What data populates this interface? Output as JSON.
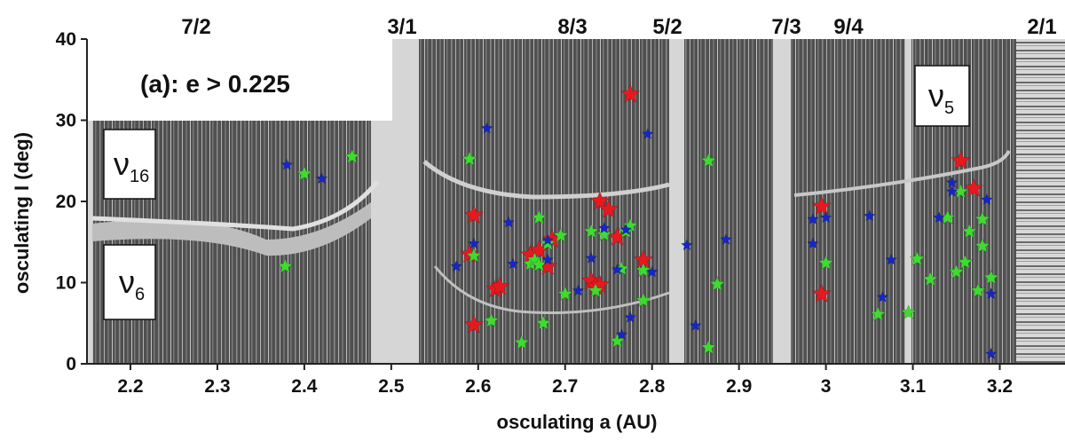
{
  "chart_data": {
    "type": "scatter",
    "panel_label": "(a): e > 0.225",
    "xlabel": "osculating a (AU)",
    "ylabel": "osculating I (deg)",
    "xlim": [
      2.15,
      3.275
    ],
    "ylim": [
      0,
      40
    ],
    "x_ticks": [
      2.2,
      2.3,
      2.4,
      2.5,
      2.6,
      2.7,
      2.8,
      2.9,
      3.0,
      3.1,
      3.2
    ],
    "x_tick_labels": [
      "2.2",
      "2.3",
      "2.4",
      "2.5",
      "2.6",
      "2.7",
      "2.8",
      "2.9",
      "3",
      "3.1",
      "3.2"
    ],
    "y_ticks": [
      0,
      10,
      20,
      30,
      40
    ],
    "y_tick_labels": [
      "0",
      "10",
      "20",
      "30",
      "40"
    ],
    "resonances": [
      {
        "label": "7/2",
        "a": 2.256
      },
      {
        "label": "3/1",
        "a": 2.5
      },
      {
        "label": "8/3",
        "a": 2.705
      },
      {
        "label": "5/2",
        "a": 2.825
      },
      {
        "label": "7/3",
        "a": 2.957
      },
      {
        "label": "9/4",
        "a": 3.03
      },
      {
        "label": "2/1",
        "a": 3.276
      }
    ],
    "secular_boxes": [
      {
        "name": "nu16",
        "symbol": "ν",
        "subscript": "16",
        "a_range": [
          2.163,
          2.227
        ],
        "i_range": [
          20.2,
          26.6
        ]
      },
      {
        "name": "nu6",
        "symbol": "ν",
        "subscript": "6",
        "a_range": [
          2.163,
          2.227
        ],
        "i_range": [
          5.4,
          14.2
        ]
      },
      {
        "name": "nu5",
        "symbol": "ν",
        "subscript": "5",
        "a_range": [
          3.108,
          3.172
        ],
        "i_range": [
          29.4,
          36.6
        ]
      }
    ],
    "series": [
      {
        "color": "#e6191f",
        "size": "large",
        "points": [
          [
            2.59,
            13.5
          ],
          [
            2.595,
            18.3
          ],
          [
            2.595,
            4.8
          ],
          [
            2.62,
            9.2
          ],
          [
            2.625,
            9.5
          ],
          [
            2.66,
            13.4
          ],
          [
            2.67,
            14.0
          ],
          [
            2.68,
            12.0
          ],
          [
            2.685,
            15.3
          ],
          [
            2.73,
            10.2
          ],
          [
            2.735,
            9.5
          ],
          [
            2.74,
            9.7
          ],
          [
            2.74,
            20.0
          ],
          [
            2.75,
            19.0
          ],
          [
            2.76,
            15.6
          ],
          [
            2.775,
            33.2
          ],
          [
            2.79,
            12.8
          ],
          [
            2.995,
            19.4
          ],
          [
            2.995,
            8.6
          ],
          [
            3.155,
            25.0
          ],
          [
            3.17,
            21.6
          ]
        ]
      },
      {
        "color": "#3ddc2f",
        "size": "medium",
        "points": [
          [
            2.378,
            12.0
          ],
          [
            2.4,
            23.4
          ],
          [
            2.455,
            25.5
          ],
          [
            2.59,
            25.2
          ],
          [
            2.595,
            13.3
          ],
          [
            2.615,
            5.3
          ],
          [
            2.65,
            2.6
          ],
          [
            2.66,
            12.3
          ],
          [
            2.665,
            12.8
          ],
          [
            2.67,
            12.2
          ],
          [
            2.67,
            18.0
          ],
          [
            2.675,
            5.0
          ],
          [
            2.68,
            14.8
          ],
          [
            2.695,
            15.8
          ],
          [
            2.7,
            8.6
          ],
          [
            2.73,
            16.3
          ],
          [
            2.735,
            9.0
          ],
          [
            2.745,
            15.9
          ],
          [
            2.76,
            2.8
          ],
          [
            2.765,
            11.7
          ],
          [
            2.77,
            16.3
          ],
          [
            2.775,
            17.0
          ],
          [
            2.79,
            7.8
          ],
          [
            2.79,
            11.5
          ],
          [
            2.865,
            25.0
          ],
          [
            2.865,
            2.0
          ],
          [
            2.875,
            9.8
          ],
          [
            3.0,
            12.4
          ],
          [
            3.06,
            6.1
          ],
          [
            3.095,
            6.3
          ],
          [
            3.105,
            12.9
          ],
          [
            3.12,
            10.4
          ],
          [
            3.14,
            18.0
          ],
          [
            3.15,
            11.3
          ],
          [
            3.155,
            21.2
          ],
          [
            3.16,
            12.5
          ],
          [
            3.165,
            16.3
          ],
          [
            3.18,
            17.8
          ],
          [
            3.18,
            14.5
          ],
          [
            3.175,
            9.0
          ],
          [
            3.19,
            10.6
          ]
        ]
      },
      {
        "color": "#1526c9",
        "size": "small",
        "points": [
          [
            2.38,
            24.5
          ],
          [
            2.42,
            22.8
          ],
          [
            2.575,
            12.0
          ],
          [
            2.595,
            14.8
          ],
          [
            2.61,
            29.0
          ],
          [
            2.635,
            17.4
          ],
          [
            2.64,
            12.3
          ],
          [
            2.68,
            15.2
          ],
          [
            2.68,
            12.8
          ],
          [
            2.715,
            9.0
          ],
          [
            2.73,
            13.0
          ],
          [
            2.745,
            16.7
          ],
          [
            2.765,
            3.6
          ],
          [
            2.76,
            11.6
          ],
          [
            2.77,
            16.5
          ],
          [
            2.775,
            5.7
          ],
          [
            2.795,
            28.3
          ],
          [
            2.8,
            11.3
          ],
          [
            2.84,
            14.6
          ],
          [
            2.85,
            4.7
          ],
          [
            2.885,
            15.3
          ],
          [
            2.985,
            17.8
          ],
          [
            2.985,
            14.8
          ],
          [
            3.0,
            18.0
          ],
          [
            3.05,
            18.2
          ],
          [
            3.065,
            8.2
          ],
          [
            3.075,
            12.8
          ],
          [
            3.13,
            18.0
          ],
          [
            3.145,
            22.3
          ],
          [
            3.145,
            21.2
          ],
          [
            3.185,
            20.2
          ],
          [
            3.19,
            1.2
          ],
          [
            3.19,
            8.6
          ]
        ]
      }
    ]
  }
}
